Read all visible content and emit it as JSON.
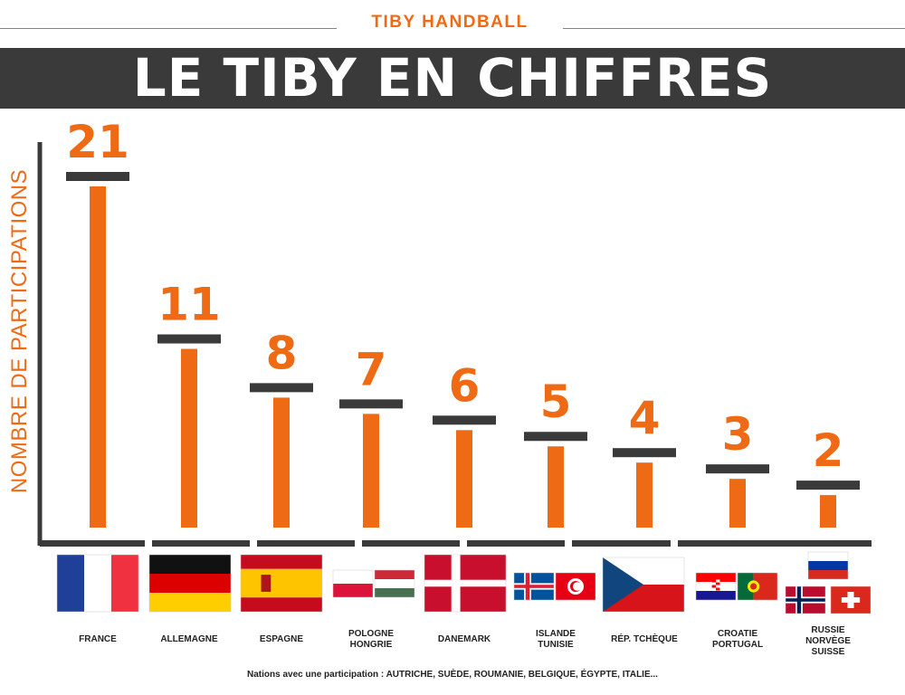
{
  "header": {
    "brand": "TIBY HANDBALL",
    "title": "LE TIBY EN CHIFFRES"
  },
  "colors": {
    "accent": "#ef6a14",
    "dark": "#3a3a3a"
  },
  "footnote": "Nations avec une participation : AUTRICHE, SUÈDE, ROUMANIE, BELGIQUE, ÉGYPTE, ITALIE...",
  "chart_data": {
    "type": "bar",
    "title": "",
    "xlabel": "",
    "ylabel": "NOMBRE DE PARTICIPATIONS",
    "ylim": [
      0,
      21
    ],
    "grid": false,
    "categories": [
      [
        "FRANCE"
      ],
      [
        "ALLEMAGNE"
      ],
      [
        "ESPAGNE"
      ],
      [
        "POLOGNE",
        "HONGRIE"
      ],
      [
        "DANEMARK"
      ],
      [
        "ISLANDE",
        "TUNISIE"
      ],
      [
        "RÉP. TCHÈQUE"
      ],
      [
        "CROATIE",
        "PORTUGAL"
      ],
      [
        "RUSSIE",
        "NORVÈGE",
        "SUISSE"
      ]
    ],
    "values": [
      21,
      11,
      8,
      7,
      6,
      5,
      4,
      3,
      2
    ],
    "flags": [
      [
        "france-flag"
      ],
      [
        "germany-flag"
      ],
      [
        "spain-flag"
      ],
      [
        "poland-flag",
        "hungary-flag"
      ],
      [
        "denmark-flag"
      ],
      [
        "iceland-flag",
        "tunisia-flag"
      ],
      [
        "czech-flag"
      ],
      [
        "croatia-flag",
        "portugal-flag"
      ],
      [
        "russia-flag",
        "norway-flag",
        "switzerland-flag"
      ]
    ]
  }
}
